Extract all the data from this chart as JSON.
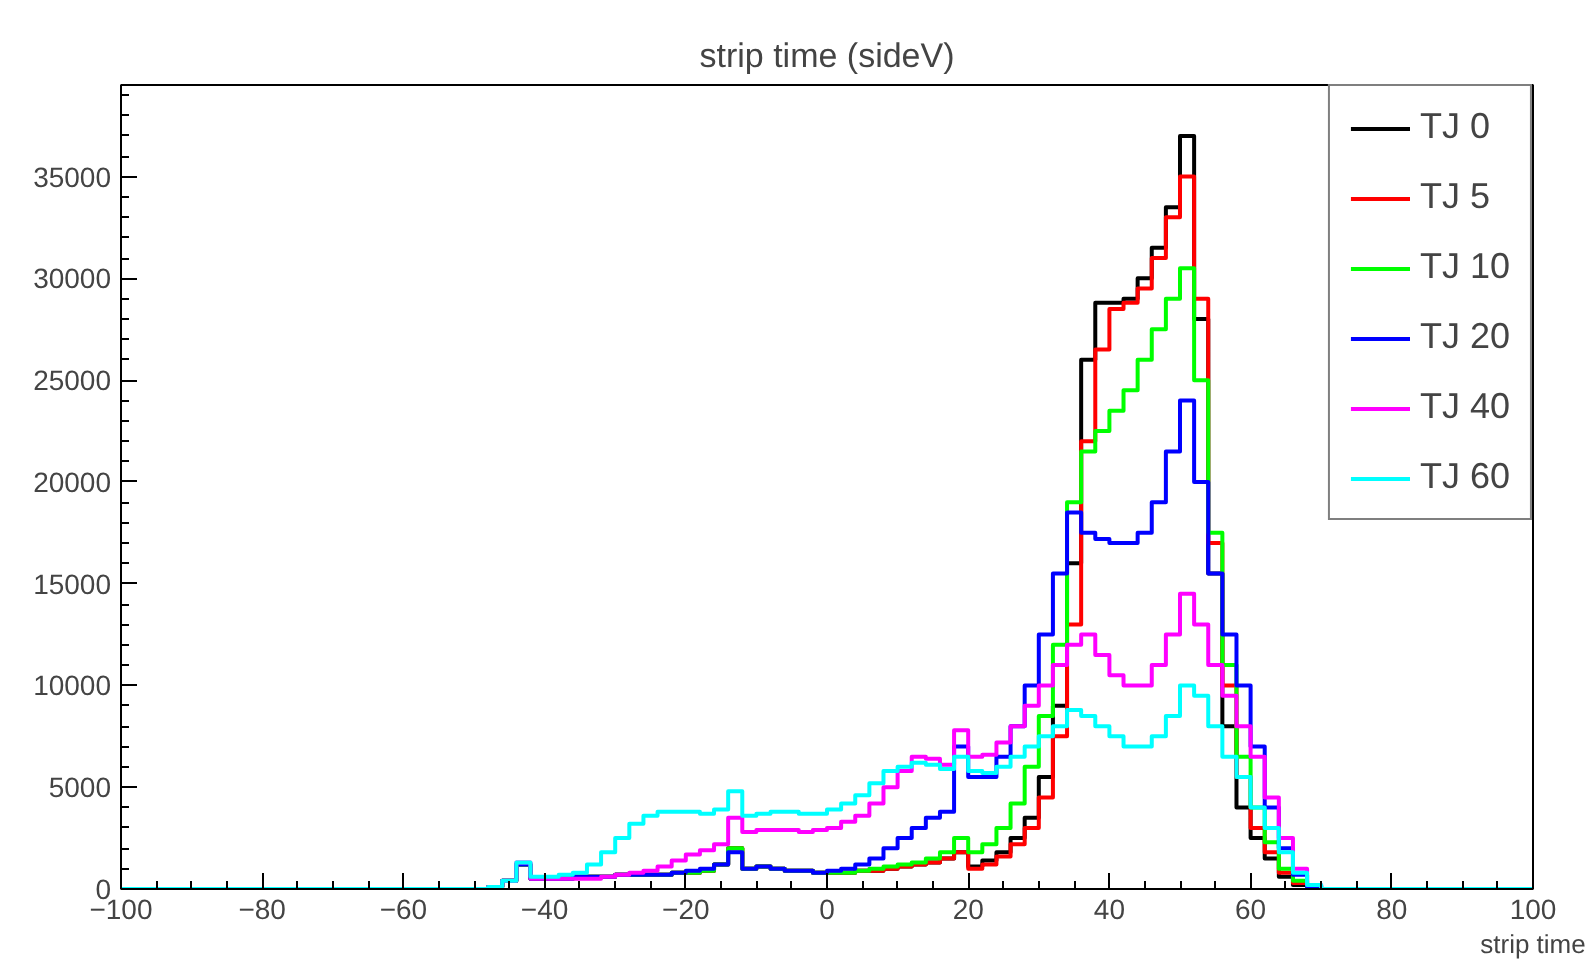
{
  "chart_data": {
    "type": "histogram",
    "title": "strip time (sideV)",
    "xlabel": "strip time",
    "bins": [
      -100,
      -48,
      -46,
      -44,
      -42,
      -40,
      -38,
      -36,
      -34,
      -32,
      -30,
      -28,
      -26,
      -24,
      -22,
      -20,
      -18,
      -16,
      -14,
      -12,
      -10,
      -8,
      -6,
      -4,
      -2,
      0,
      2,
      4,
      6,
      8,
      10,
      12,
      14,
      16,
      18,
      20,
      22,
      24,
      26,
      28,
      30,
      32,
      34,
      36,
      38,
      40,
      42,
      44,
      46,
      48,
      50,
      52,
      54,
      56,
      58,
      60,
      62,
      64,
      66,
      68,
      70,
      100
    ],
    "series": [
      {
        "name": "TJ 0",
        "color": "#000000",
        "values": [
          0,
          100,
          400,
          1200,
          500,
          500,
          500,
          600,
          600,
          600,
          700,
          700,
          700,
          700,
          800,
          800,
          900,
          1200,
          2000,
          1000,
          1100,
          1000,
          900,
          900,
          800,
          800,
          800,
          900,
          900,
          1000,
          1100,
          1200,
          1300,
          1500,
          1800,
          1100,
          1400,
          1800,
          2500,
          3500,
          5500,
          9000,
          16000,
          26000,
          28800,
          28800,
          29000,
          30000,
          31500,
          33500,
          37000,
          28000,
          15500,
          8000,
          4000,
          2500,
          1500,
          600,
          200,
          100,
          0
        ]
      },
      {
        "name": "TJ 5",
        "color": "#ff0000",
        "values": [
          0,
          100,
          400,
          1200,
          500,
          500,
          500,
          600,
          600,
          600,
          700,
          700,
          700,
          700,
          800,
          800,
          900,
          1200,
          2000,
          1000,
          1100,
          1000,
          900,
          900,
          800,
          800,
          800,
          900,
          900,
          1000,
          1100,
          1200,
          1300,
          1500,
          1800,
          1000,
          1200,
          1600,
          2200,
          3000,
          4500,
          7500,
          13000,
          22000,
          26500,
          28500,
          28800,
          29500,
          31000,
          33000,
          35000,
          29000,
          17000,
          10000,
          5500,
          3000,
          1800,
          800,
          300,
          100,
          0
        ]
      },
      {
        "name": "TJ 10",
        "color": "#00ff00",
        "values": [
          0,
          100,
          400,
          1200,
          500,
          500,
          500,
          600,
          600,
          600,
          700,
          700,
          700,
          700,
          800,
          800,
          900,
          1200,
          2000,
          1000,
          1100,
          1000,
          900,
          900,
          800,
          800,
          800,
          900,
          1000,
          1100,
          1200,
          1300,
          1500,
          1800,
          2500,
          1800,
          2200,
          3000,
          4200,
          6000,
          8500,
          12000,
          19000,
          21500,
          22500,
          23500,
          24500,
          26000,
          27500,
          29000,
          30500,
          25000,
          17500,
          11000,
          6500,
          4000,
          2300,
          1000,
          400,
          100,
          0
        ]
      },
      {
        "name": "TJ 20",
        "color": "#0000ff",
        "values": [
          0,
          100,
          400,
          1200,
          500,
          500,
          500,
          600,
          600,
          600,
          700,
          700,
          700,
          700,
          800,
          900,
          1000,
          1200,
          1800,
          1000,
          1100,
          1000,
          900,
          900,
          800,
          900,
          1000,
          1200,
          1500,
          2000,
          2500,
          3000,
          3500,
          3800,
          7000,
          5500,
          5500,
          6500,
          8000,
          10000,
          12500,
          15500,
          18500,
          17500,
          17200,
          17000,
          17000,
          17500,
          19000,
          21500,
          24000,
          20000,
          15500,
          12500,
          10000,
          7000,
          4000,
          2000,
          700,
          100,
          0
        ]
      },
      {
        "name": "TJ 40",
        "color": "#ff00ff",
        "values": [
          0,
          100,
          400,
          1300,
          500,
          500,
          500,
          500,
          500,
          600,
          700,
          800,
          900,
          1100,
          1400,
          1700,
          1900,
          2200,
          3500,
          2800,
          2900,
          2900,
          2900,
          2800,
          2900,
          3000,
          3300,
          3600,
          4200,
          5000,
          5800,
          6500,
          6400,
          6100,
          7800,
          6500,
          6600,
          7200,
          8000,
          9000,
          10000,
          11000,
          12000,
          12500,
          11500,
          10500,
          10000,
          10000,
          11000,
          12500,
          14500,
          13000,
          11000,
          9500,
          8000,
          6500,
          4500,
          2500,
          1000,
          200,
          0
        ]
      },
      {
        "name": "TJ 60",
        "color": "#00ffff",
        "values": [
          0,
          100,
          400,
          1300,
          600,
          600,
          700,
          800,
          1200,
          1800,
          2500,
          3200,
          3600,
          3800,
          3800,
          3800,
          3700,
          3900,
          4800,
          3600,
          3700,
          3800,
          3800,
          3700,
          3700,
          3900,
          4200,
          4600,
          5200,
          5800,
          6000,
          6200,
          6100,
          5900,
          6500,
          5800,
          5700,
          6000,
          6500,
          7000,
          7500,
          8000,
          8800,
          8500,
          8000,
          7500,
          7000,
          7000,
          7500,
          8500,
          10000,
          9500,
          8000,
          6500,
          5500,
          4000,
          3000,
          1800,
          800,
          200,
          0
        ]
      }
    ],
    "xlim": [
      -100,
      100
    ],
    "ylim": [
      0,
      39500
    ],
    "xticks": [
      -100,
      -80,
      -60,
      -40,
      -20,
      0,
      20,
      40,
      60,
      80,
      100
    ],
    "yticks": [
      0,
      5000,
      10000,
      15000,
      20000,
      25000,
      30000,
      35000
    ],
    "legend": "top right"
  }
}
